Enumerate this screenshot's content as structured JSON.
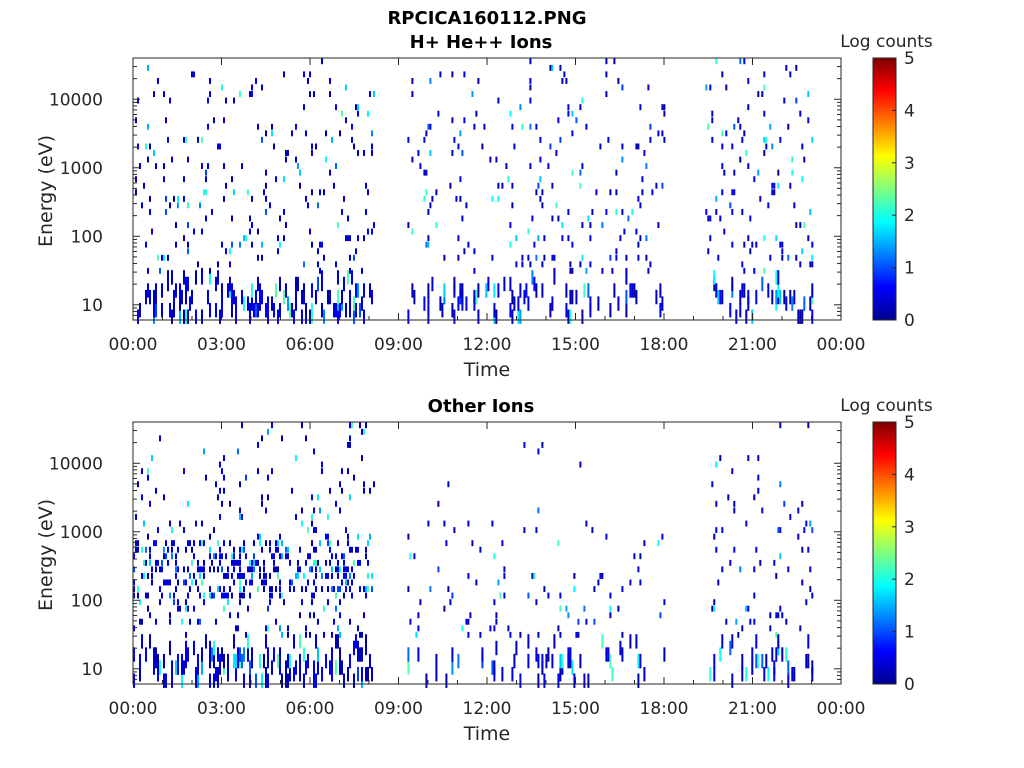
{
  "figure_title": "RPCICA160112.PNG",
  "colors": {
    "axis": "#262626",
    "colormap": [
      "#00008f",
      "#0000ff",
      "#0080ff",
      "#00ffff",
      "#80ff80",
      "#ffff00",
      "#ff8000",
      "#ff0000",
      "#800000"
    ]
  },
  "chart_data": [
    {
      "type": "heatmap",
      "title": "H+ He++ Ions",
      "xlabel": "Time",
      "ylabel": "Energy (eV)",
      "x_tick_labels": [
        "00:00",
        "03:00",
        "06:00",
        "09:00",
        "12:00",
        "15:00",
        "18:00",
        "21:00",
        "00:00"
      ],
      "x_ticks_hours": [
        0,
        3,
        6,
        9,
        12,
        15,
        18,
        21,
        24
      ],
      "xlim_hours": [
        0,
        24
      ],
      "y_scale": "log",
      "y_tick_labels": [
        "10",
        "100",
        "1000",
        "10000"
      ],
      "y_ticks": [
        10,
        100,
        1000,
        10000
      ],
      "ylim": [
        6,
        40000
      ],
      "colorbar": {
        "label": "Log counts",
        "min": 0,
        "max": 5,
        "tick_labels": [
          "0",
          "1",
          "2",
          "3",
          "4",
          "5"
        ]
      },
      "data_segments": [
        {
          "start_hour": 0.0,
          "end_hour": 8.2,
          "count_level": 1.0
        },
        {
          "start_hour": 9.3,
          "end_hour": 18.0,
          "count_level": 0.8
        },
        {
          "start_hour": 19.4,
          "end_hour": 23.0,
          "count_level": 1.0
        }
      ],
      "gaps": [
        [
          8.2,
          9.3
        ],
        [
          18.0,
          19.4
        ]
      ]
    },
    {
      "type": "heatmap",
      "title": "Other Ions",
      "xlabel": "Time",
      "ylabel": "Energy (eV)",
      "x_tick_labels": [
        "00:00",
        "03:00",
        "06:00",
        "09:00",
        "12:00",
        "15:00",
        "18:00",
        "21:00",
        "00:00"
      ],
      "x_ticks_hours": [
        0,
        3,
        6,
        9,
        12,
        15,
        18,
        21,
        24
      ],
      "xlim_hours": [
        0,
        24
      ],
      "y_scale": "log",
      "y_tick_labels": [
        "10",
        "100",
        "1000",
        "10000"
      ],
      "y_ticks": [
        10,
        100,
        1000,
        10000
      ],
      "ylim": [
        6,
        40000
      ],
      "colorbar": {
        "label": "Log counts",
        "min": 0,
        "max": 5,
        "tick_labels": [
          "0",
          "1",
          "2",
          "3",
          "4",
          "5"
        ]
      },
      "data_segments": [
        {
          "start_hour": 0.0,
          "end_hour": 8.2,
          "count_level": 1.3
        },
        {
          "start_hour": 9.3,
          "end_hour": 18.0,
          "count_level": 0.5
        },
        {
          "start_hour": 19.4,
          "end_hour": 23.0,
          "count_level": 0.8
        }
      ],
      "gaps": [
        [
          8.2,
          9.3
        ],
        [
          18.0,
          19.4
        ]
      ]
    }
  ]
}
